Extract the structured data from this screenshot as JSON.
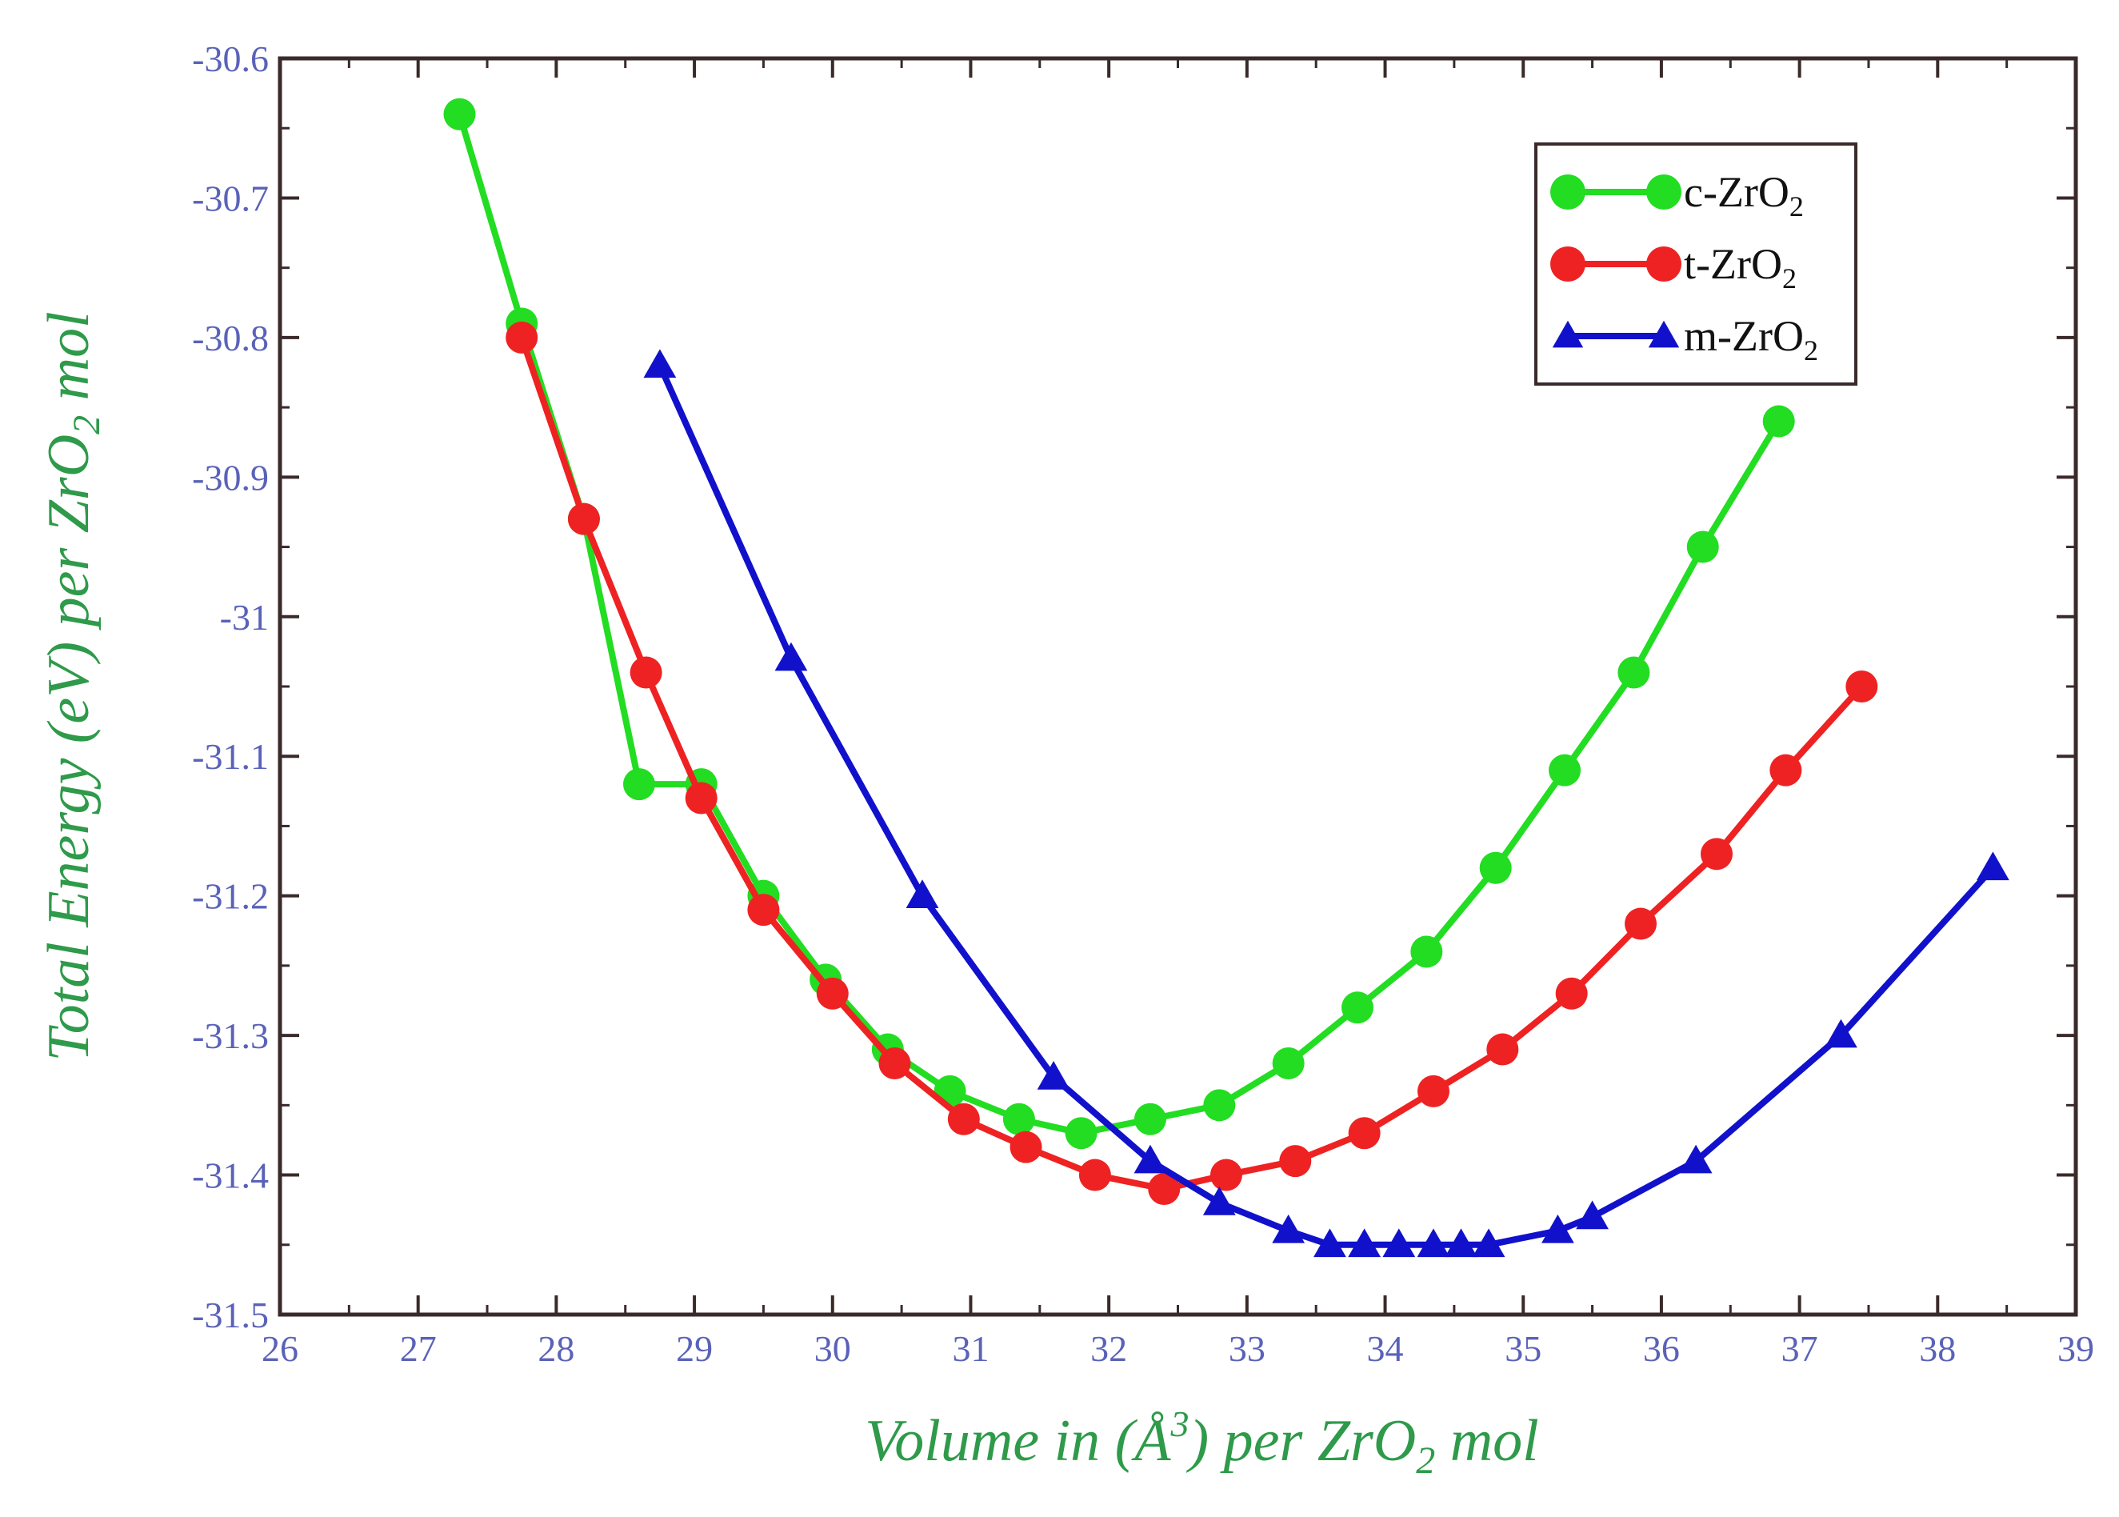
{
  "chart_data": {
    "type": "line",
    "title": "",
    "xlabel": {
      "prefix": "Volume in (",
      "unit": "Å",
      "unit_sup": "3",
      "middle": ") per ZrO",
      "sub": "2",
      "suffix": " mol"
    },
    "ylabel": {
      "prefix": "Total Energy (eV) per ZrO",
      "sub": "2",
      "suffix": " mol"
    },
    "xlim": [
      26,
      39
    ],
    "ylim": [
      -31.5,
      -30.6
    ],
    "x_ticks": [
      26,
      27,
      28,
      29,
      30,
      31,
      32,
      33,
      34,
      35,
      36,
      37,
      38,
      39
    ],
    "x_tick_labels": [
      "26",
      "27",
      "28",
      "29",
      "30",
      "31",
      "32",
      "33",
      "34",
      "35",
      "36",
      "37",
      "38",
      "39"
    ],
    "y_ticks": [
      -30.6,
      -30.7,
      -30.8,
      -30.9,
      -31,
      -31.1,
      -31.2,
      -31.3,
      -31.4,
      -31.5
    ],
    "y_tick_labels": [
      "-30.6",
      "-30.7",
      "-30.8",
      "-30.9",
      "-31",
      "-31.1",
      "-31.2",
      "-31.3",
      "-31.4",
      "-31.5"
    ],
    "legend_position": "top-right",
    "grid": false,
    "series": [
      {
        "name": "c-ZrO",
        "name_sub": "2",
        "color": "#22dd22",
        "marker": "circle",
        "x": [
          27.3,
          27.75,
          28.2,
          28.6,
          29.05,
          29.5,
          29.95,
          30.4,
          30.85,
          31.35,
          31.8,
          32.3,
          32.8,
          33.3,
          33.8,
          34.3,
          34.8,
          35.3,
          35.8,
          36.3,
          36.85
        ],
        "y": [
          -30.64,
          -30.79,
          -30.93,
          -31.12,
          -31.12,
          -31.2,
          -31.26,
          -31.31,
          -31.34,
          -31.36,
          -31.37,
          -31.36,
          -31.35,
          -31.32,
          -31.28,
          -31.24,
          -31.18,
          -31.11,
          -31.04,
          -30.95,
          -30.86
        ]
      },
      {
        "name": "t-ZrO",
        "name_sub": "2",
        "color": "#ee2222",
        "marker": "circle",
        "x": [
          27.75,
          28.2,
          28.65,
          29.05,
          29.5,
          30.0,
          30.45,
          30.95,
          31.4,
          31.9,
          32.4,
          32.85,
          33.35,
          33.85,
          34.35,
          34.85,
          35.35,
          35.85,
          36.4,
          36.9,
          37.45
        ],
        "y": [
          -30.8,
          -30.93,
          -31.04,
          -31.13,
          -31.21,
          -31.27,
          -31.32,
          -31.36,
          -31.38,
          -31.4,
          -31.41,
          -31.4,
          -31.39,
          -31.37,
          -31.34,
          -31.31,
          -31.27,
          -31.22,
          -31.17,
          -31.11,
          -31.05
        ]
      },
      {
        "name": "m-ZrO",
        "name_sub": "2",
        "color": "#1111cc",
        "marker": "triangle",
        "x": [
          28.75,
          29.7,
          30.65,
          31.6,
          32.3,
          32.8,
          33.3,
          33.6,
          33.85,
          34.1,
          34.35,
          34.55,
          34.75,
          35.25,
          35.5,
          36.25,
          37.3,
          38.4
        ],
        "y": [
          -30.82,
          -31.03,
          -31.2,
          -31.33,
          -31.39,
          -31.42,
          -31.44,
          -31.45,
          -31.45,
          -31.45,
          -31.45,
          -31.45,
          -31.45,
          -31.44,
          -31.43,
          -31.39,
          -31.3,
          -31.18
        ]
      }
    ]
  }
}
